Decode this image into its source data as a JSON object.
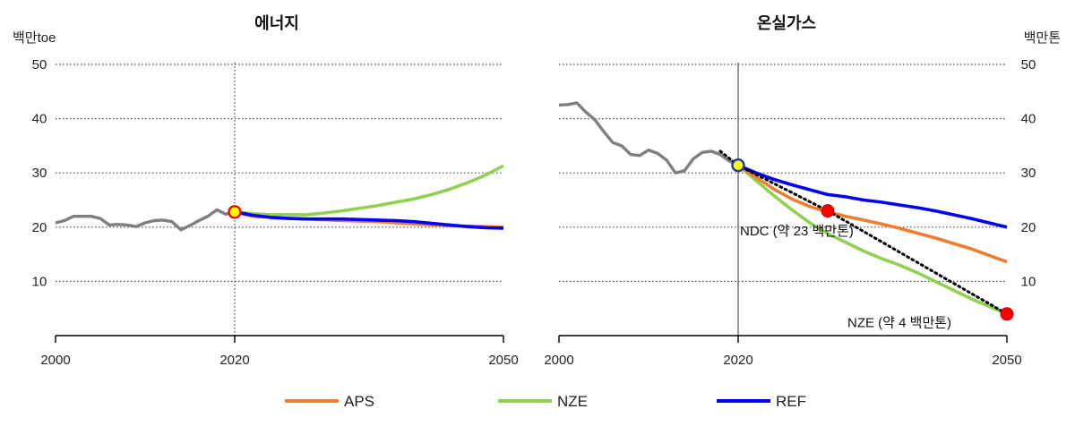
{
  "colors": {
    "history": "#7f7f7f",
    "APS": "#ED7D31",
    "NZE": "#92D050",
    "REF": "#0000FF",
    "marker_fill_start": "#FFFF00",
    "marker_fill_target": "#FF0000"
  },
  "legend": [
    "APS",
    "NZE",
    "REF"
  ],
  "chart_data": [
    {
      "type": "line",
      "title": "에너지",
      "ylabel": "백만toe",
      "xlim": [
        2000,
        2050
      ],
      "ylim": [
        0,
        50
      ],
      "yticks": [
        10,
        20,
        30,
        40,
        50
      ],
      "xticks": [
        2000,
        2020,
        2050
      ],
      "grid": true,
      "vline": 2020,
      "history": {
        "x": [
          2000,
          2001,
          2002,
          2003,
          2004,
          2005,
          2006,
          2007,
          2008,
          2009,
          2010,
          2011,
          2012,
          2013,
          2014,
          2015,
          2016,
          2017,
          2018,
          2019,
          2020
        ],
        "y": [
          20.8,
          21.2,
          22.0,
          22.0,
          22.0,
          21.6,
          20.4,
          20.5,
          20.4,
          20.1,
          20.8,
          21.2,
          21.3,
          21.0,
          19.5,
          20.3,
          21.2,
          22.0,
          23.2,
          22.4,
          22.8
        ]
      },
      "series": [
        {
          "name": "APS",
          "x": [
            2020,
            2022,
            2025,
            2028,
            2032,
            2036,
            2040,
            2045,
            2050
          ],
          "y": [
            22.8,
            22.0,
            21.7,
            21.5,
            21.2,
            21.0,
            20.6,
            20.2,
            20.0
          ]
        },
        {
          "name": "NZE",
          "x": [
            2020,
            2022,
            2024,
            2026,
            2028,
            2030,
            2032,
            2034,
            2036,
            2038,
            2040,
            2042,
            2044,
            2046,
            2048,
            2050
          ],
          "y": [
            22.8,
            22.5,
            22.3,
            22.3,
            22.3,
            22.6,
            23.0,
            23.5,
            24.0,
            24.6,
            25.2,
            26.0,
            27.0,
            28.2,
            29.6,
            31.3
          ]
        },
        {
          "name": "REF",
          "x": [
            2020,
            2022,
            2024,
            2026,
            2028,
            2030,
            2032,
            2034,
            2036,
            2038,
            2040,
            2042,
            2044,
            2046,
            2048,
            2050
          ],
          "y": [
            22.8,
            22.2,
            21.8,
            21.6,
            21.5,
            21.5,
            21.5,
            21.4,
            21.3,
            21.2,
            21.0,
            20.7,
            20.4,
            20.1,
            19.9,
            19.8
          ]
        }
      ],
      "markers": [
        {
          "x": 2020,
          "y": 22.8,
          "kind": "start"
        }
      ]
    },
    {
      "type": "line",
      "title": "온실가스",
      "ylabel": "백만톤",
      "xlim": [
        2000,
        2050
      ],
      "ylim": [
        0,
        50
      ],
      "yticks": [
        10,
        20,
        30,
        40,
        50
      ],
      "xticks": [
        2000,
        2020,
        2050
      ],
      "grid": true,
      "vline": 2020,
      "history": {
        "x": [
          2000,
          2001,
          2002,
          2003,
          2004,
          2005,
          2006,
          2007,
          2008,
          2009,
          2010,
          2011,
          2012,
          2013,
          2014,
          2015,
          2016,
          2017,
          2018,
          2019,
          2020
        ],
        "y": [
          42.5,
          42.6,
          42.9,
          41.2,
          39.8,
          37.6,
          35.6,
          35.0,
          33.4,
          33.2,
          34.2,
          33.6,
          32.4,
          30.0,
          30.4,
          32.6,
          33.8,
          34.0,
          33.4,
          32.2,
          31.4
        ]
      },
      "series": [
        {
          "name": "APS",
          "x": [
            2020,
            2022,
            2024,
            2026,
            2028,
            2030,
            2032,
            2034,
            2036,
            2038,
            2040,
            2042,
            2044,
            2046,
            2048,
            2050
          ],
          "y": [
            31.4,
            29.2,
            27.0,
            25.2,
            23.8,
            22.8,
            22.0,
            21.3,
            20.6,
            19.8,
            18.9,
            18.0,
            17.0,
            16.0,
            14.8,
            13.6
          ]
        },
        {
          "name": "NZE",
          "x": [
            2020,
            2022,
            2024,
            2026,
            2028,
            2030,
            2032,
            2034,
            2036,
            2038,
            2040,
            2042,
            2044,
            2046,
            2048,
            2050
          ],
          "y": [
            31.4,
            28.6,
            25.8,
            23.2,
            20.8,
            18.8,
            17.2,
            15.6,
            14.2,
            13.0,
            11.6,
            10.0,
            8.4,
            6.8,
            5.4,
            4.0
          ]
        },
        {
          "name": "REF",
          "x": [
            2020,
            2022,
            2024,
            2026,
            2028,
            2030,
            2032,
            2034,
            2036,
            2038,
            2040,
            2042,
            2044,
            2046,
            2048,
            2050
          ],
          "y": [
            31.4,
            30.0,
            28.8,
            27.8,
            26.9,
            26.0,
            25.6,
            25.0,
            24.6,
            24.1,
            23.6,
            23.0,
            22.3,
            21.6,
            20.8,
            20.0
          ]
        }
      ],
      "targets_line": {
        "x": [
          2018,
          2020,
          2030,
          2050
        ],
        "y": [
          34.0,
          31.4,
          23.0,
          4.0
        ]
      },
      "markers": [
        {
          "x": 2020,
          "y": 31.4,
          "kind": "start"
        },
        {
          "x": 2030,
          "y": 23.0,
          "kind": "target"
        },
        {
          "x": 2050,
          "y": 4.0,
          "kind": "target"
        }
      ],
      "annotations": [
        {
          "text": "NDC (약 23 백만톤)",
          "x": 2020,
          "y": 19.3
        },
        {
          "text": "NZE (약 4 백만톤)",
          "x": 2032,
          "y": 2.4
        }
      ]
    }
  ]
}
